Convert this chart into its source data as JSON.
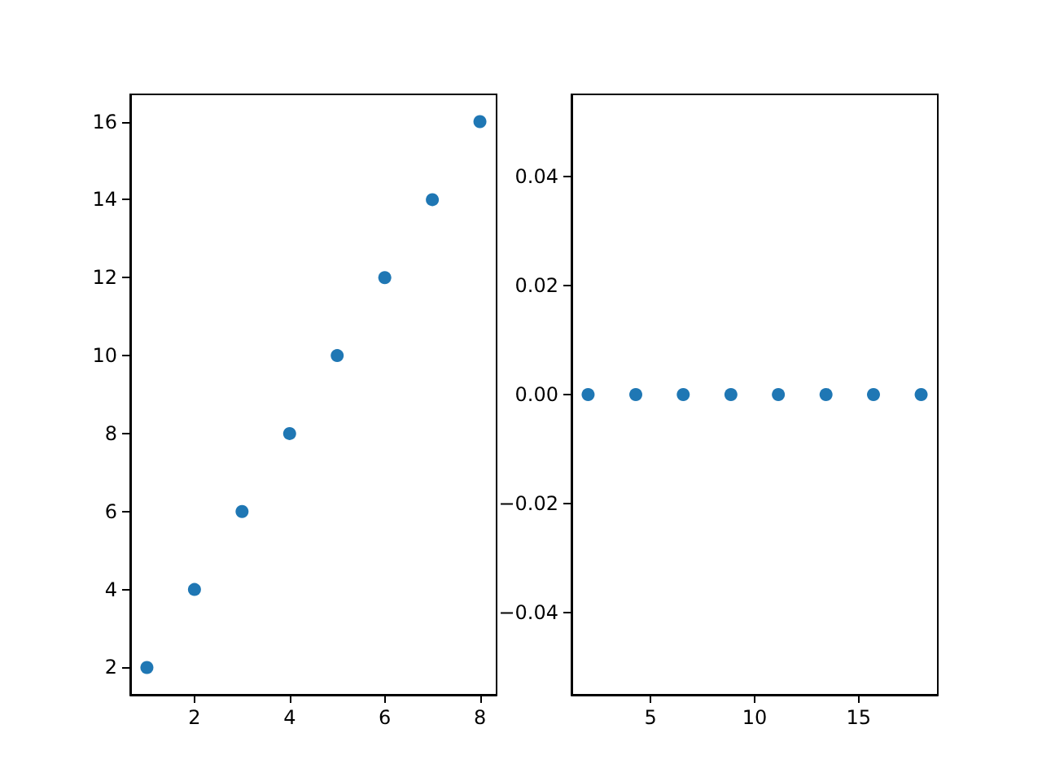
{
  "chart_data": [
    {
      "type": "scatter",
      "x": [
        1,
        2,
        3,
        4,
        5,
        6,
        7,
        8
      ],
      "values": [
        2,
        4,
        6,
        8,
        10,
        12,
        14,
        16
      ],
      "color": "#1f77b4",
      "marker": "circle",
      "grid": false,
      "xlim": [
        0.65,
        8.35
      ],
      "ylim": [
        1.3,
        16.7
      ],
      "xticks": [
        2,
        4,
        6,
        8
      ],
      "yticks": [
        2,
        4,
        6,
        8,
        10,
        12,
        14,
        16
      ]
    },
    {
      "type": "scatter",
      "x": [
        2,
        4.29,
        6.57,
        8.86,
        11.14,
        13.43,
        15.71,
        18
      ],
      "values": [
        0,
        0,
        0,
        0,
        0,
        0,
        0,
        0
      ],
      "color": "#1f77b4",
      "marker": "circle",
      "grid": false,
      "xlim": [
        1.2,
        18.8
      ],
      "ylim": [
        -0.055,
        0.055
      ],
      "xticks": [
        5,
        10,
        15
      ],
      "yticks": [
        {
          "value": -0.04,
          "label": "−0.04"
        },
        {
          "value": -0.02,
          "label": "−0.02"
        },
        {
          "value": 0,
          "label": "0.00"
        },
        {
          "value": 0.02,
          "label": "0.02"
        },
        {
          "value": 0.04,
          "label": "0.04"
        }
      ]
    }
  ]
}
